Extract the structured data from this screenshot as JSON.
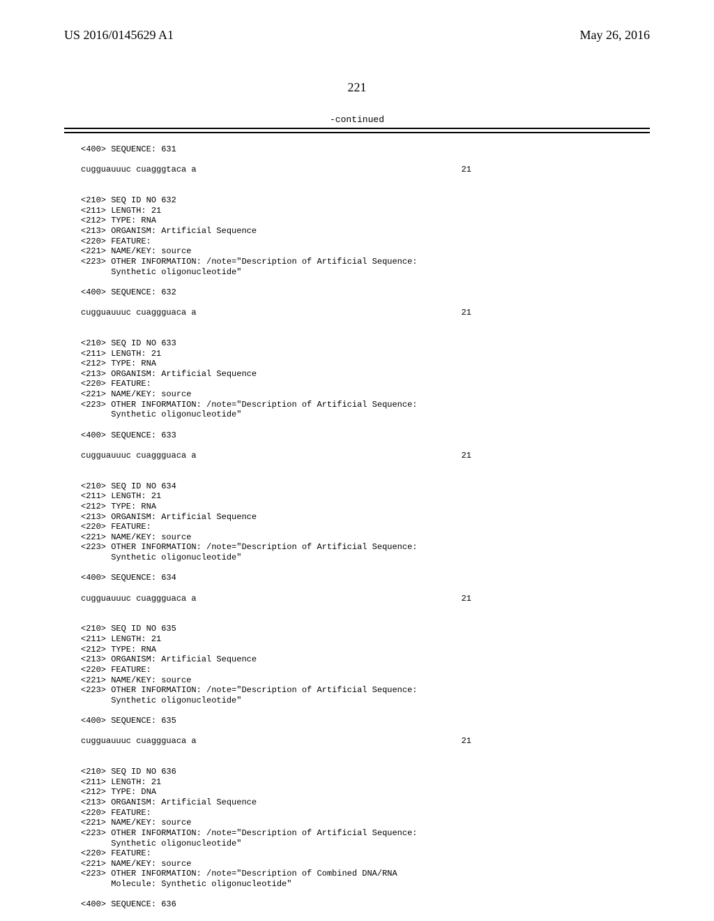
{
  "header": {
    "left": "US 2016/0145629 A1",
    "right": "May 26, 2016"
  },
  "page_number": "221",
  "continued_label": "-continued",
  "entries": [
    {
      "kind": "line",
      "text": "<400> SEQUENCE: 631"
    },
    {
      "kind": "blank"
    },
    {
      "kind": "seq",
      "seq": "cugguauuuc cuagggtaca a",
      "num": "21"
    },
    {
      "kind": "blank"
    },
    {
      "kind": "blank"
    },
    {
      "kind": "line",
      "text": "<210> SEQ ID NO 632"
    },
    {
      "kind": "line",
      "text": "<211> LENGTH: 21"
    },
    {
      "kind": "line",
      "text": "<212> TYPE: RNA"
    },
    {
      "kind": "line",
      "text": "<213> ORGANISM: Artificial Sequence"
    },
    {
      "kind": "line",
      "text": "<220> FEATURE:"
    },
    {
      "kind": "line",
      "text": "<221> NAME/KEY: source"
    },
    {
      "kind": "line",
      "text": "<223> OTHER INFORMATION: /note=\"Description of Artificial Sequence:"
    },
    {
      "kind": "line",
      "text": "      Synthetic oligonucleotide\""
    },
    {
      "kind": "blank"
    },
    {
      "kind": "line",
      "text": "<400> SEQUENCE: 632"
    },
    {
      "kind": "blank"
    },
    {
      "kind": "seq",
      "seq": "cugguauuuc cuaggguaca a",
      "num": "21"
    },
    {
      "kind": "blank"
    },
    {
      "kind": "blank"
    },
    {
      "kind": "line",
      "text": "<210> SEQ ID NO 633"
    },
    {
      "kind": "line",
      "text": "<211> LENGTH: 21"
    },
    {
      "kind": "line",
      "text": "<212> TYPE: RNA"
    },
    {
      "kind": "line",
      "text": "<213> ORGANISM: Artificial Sequence"
    },
    {
      "kind": "line",
      "text": "<220> FEATURE:"
    },
    {
      "kind": "line",
      "text": "<221> NAME/KEY: source"
    },
    {
      "kind": "line",
      "text": "<223> OTHER INFORMATION: /note=\"Description of Artificial Sequence:"
    },
    {
      "kind": "line",
      "text": "      Synthetic oligonucleotide\""
    },
    {
      "kind": "blank"
    },
    {
      "kind": "line",
      "text": "<400> SEQUENCE: 633"
    },
    {
      "kind": "blank"
    },
    {
      "kind": "seq",
      "seq": "cugguauuuc cuaggguaca a",
      "num": "21"
    },
    {
      "kind": "blank"
    },
    {
      "kind": "blank"
    },
    {
      "kind": "line",
      "text": "<210> SEQ ID NO 634"
    },
    {
      "kind": "line",
      "text": "<211> LENGTH: 21"
    },
    {
      "kind": "line",
      "text": "<212> TYPE: RNA"
    },
    {
      "kind": "line",
      "text": "<213> ORGANISM: Artificial Sequence"
    },
    {
      "kind": "line",
      "text": "<220> FEATURE:"
    },
    {
      "kind": "line",
      "text": "<221> NAME/KEY: source"
    },
    {
      "kind": "line",
      "text": "<223> OTHER INFORMATION: /note=\"Description of Artificial Sequence:"
    },
    {
      "kind": "line",
      "text": "      Synthetic oligonucleotide\""
    },
    {
      "kind": "blank"
    },
    {
      "kind": "line",
      "text": "<400> SEQUENCE: 634"
    },
    {
      "kind": "blank"
    },
    {
      "kind": "seq",
      "seq": "cugguauuuc cuaggguaca a",
      "num": "21"
    },
    {
      "kind": "blank"
    },
    {
      "kind": "blank"
    },
    {
      "kind": "line",
      "text": "<210> SEQ ID NO 635"
    },
    {
      "kind": "line",
      "text": "<211> LENGTH: 21"
    },
    {
      "kind": "line",
      "text": "<212> TYPE: RNA"
    },
    {
      "kind": "line",
      "text": "<213> ORGANISM: Artificial Sequence"
    },
    {
      "kind": "line",
      "text": "<220> FEATURE:"
    },
    {
      "kind": "line",
      "text": "<221> NAME/KEY: source"
    },
    {
      "kind": "line",
      "text": "<223> OTHER INFORMATION: /note=\"Description of Artificial Sequence:"
    },
    {
      "kind": "line",
      "text": "      Synthetic oligonucleotide\""
    },
    {
      "kind": "blank"
    },
    {
      "kind": "line",
      "text": "<400> SEQUENCE: 635"
    },
    {
      "kind": "blank"
    },
    {
      "kind": "seq",
      "seq": "cugguauuuc cuaggguaca a",
      "num": "21"
    },
    {
      "kind": "blank"
    },
    {
      "kind": "blank"
    },
    {
      "kind": "line",
      "text": "<210> SEQ ID NO 636"
    },
    {
      "kind": "line",
      "text": "<211> LENGTH: 21"
    },
    {
      "kind": "line",
      "text": "<212> TYPE: DNA"
    },
    {
      "kind": "line",
      "text": "<213> ORGANISM: Artificial Sequence"
    },
    {
      "kind": "line",
      "text": "<220> FEATURE:"
    },
    {
      "kind": "line",
      "text": "<221> NAME/KEY: source"
    },
    {
      "kind": "line",
      "text": "<223> OTHER INFORMATION: /note=\"Description of Artificial Sequence:"
    },
    {
      "kind": "line",
      "text": "      Synthetic oligonucleotide\""
    },
    {
      "kind": "line",
      "text": "<220> FEATURE:"
    },
    {
      "kind": "line",
      "text": "<221> NAME/KEY: source"
    },
    {
      "kind": "line",
      "text": "<223> OTHER INFORMATION: /note=\"Description of Combined DNA/RNA"
    },
    {
      "kind": "line",
      "text": "      Molecule: Synthetic oligonucleotide\""
    },
    {
      "kind": "blank"
    },
    {
      "kind": "line",
      "text": "<400> SEQUENCE: 636"
    }
  ]
}
